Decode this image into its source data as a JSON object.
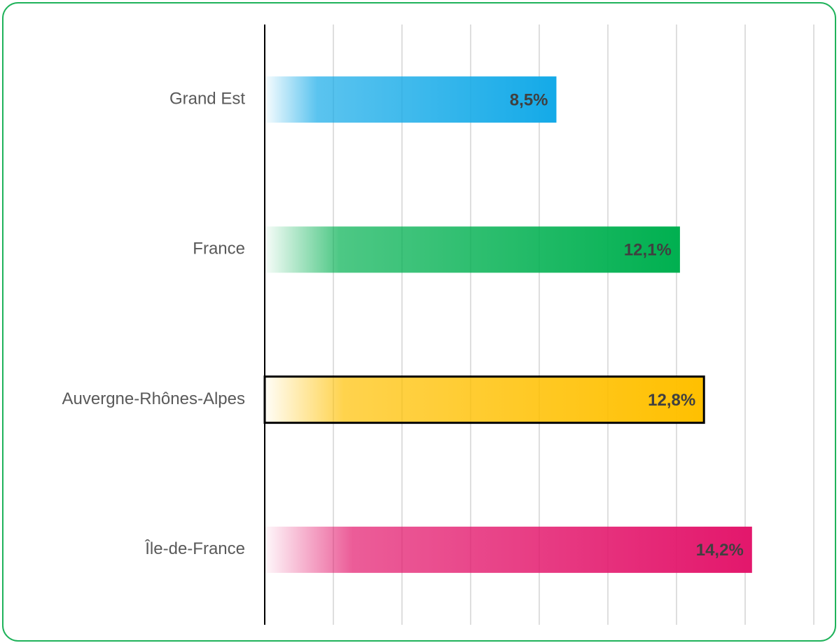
{
  "chart_data": {
    "type": "barh",
    "categories": [
      "Grand Est",
      "France",
      "Auvergne-Rhônes-Alpes",
      "Île-de-France"
    ],
    "values": [
      8.5,
      12.1,
      12.8,
      14.2
    ],
    "value_labels": [
      "8,5%",
      "12,1%",
      "12,8%",
      "14,2%"
    ],
    "colors": [
      "#14aae8",
      "#00b050",
      "#ffc000",
      "#e3176c"
    ],
    "highlight_index": 2,
    "xlim": [
      0,
      16
    ],
    "xticks": [
      0,
      2,
      4,
      6,
      8,
      10,
      12,
      14,
      16
    ],
    "grid": true
  }
}
